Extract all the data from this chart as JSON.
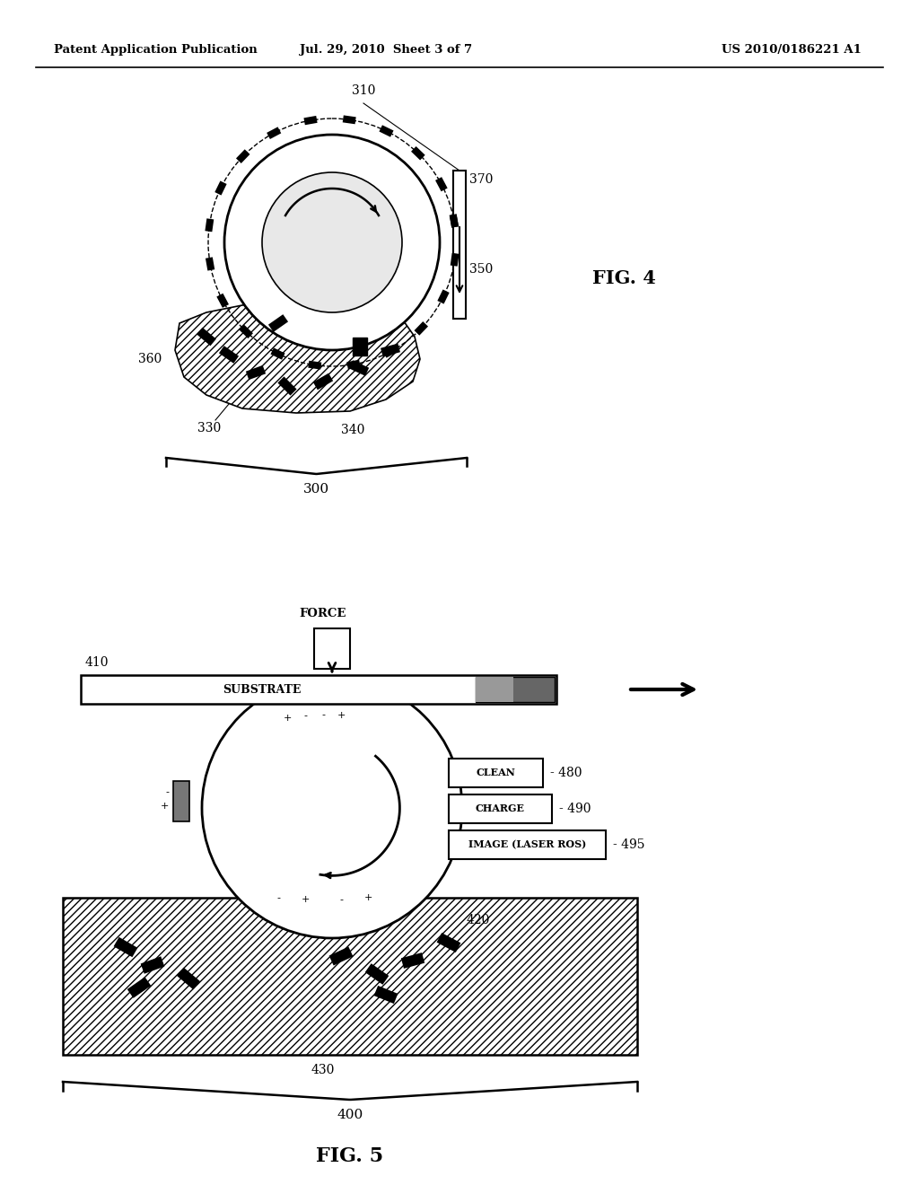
{
  "background_color": "#ffffff",
  "header_left": "Patent Application Publication",
  "header_center": "Jul. 29, 2010  Sheet 3 of 7",
  "header_right": "US 2010/0186221 A1",
  "fig4_label": "FIG. 4",
  "fig5_label": "FIG. 5"
}
